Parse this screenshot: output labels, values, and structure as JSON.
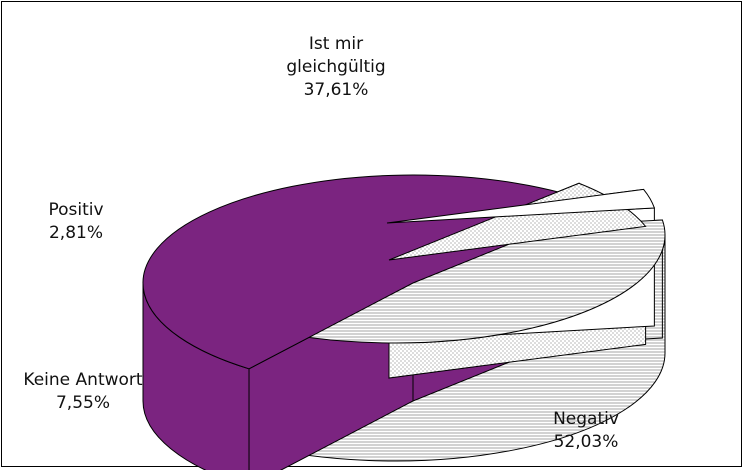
{
  "chart_data": {
    "type": "pie",
    "style": "3d-exploded",
    "title": "",
    "slices": [
      {
        "label_lines": [
          "Ist mir",
          "gleichgültig"
        ],
        "value_text": "37,61%",
        "value": 37.61,
        "fill": "hatched-horizontal-light-gray"
      },
      {
        "label_lines": [
          "Negativ"
        ],
        "value_text": "52,03%",
        "value": 52.03,
        "fill": "#7B2480"
      },
      {
        "label_lines": [
          "Keine Antwort"
        ],
        "value_text": "7,55%",
        "value": 7.55,
        "fill": "dotted-white"
      },
      {
        "label_lines": [
          "Positiv"
        ],
        "value_text": "2,81%",
        "value": 2.81,
        "fill": "#ffffff"
      }
    ],
    "legend": "none",
    "grid": false
  },
  "colors": {
    "negativ": "#7B2480",
    "negativ_side": "#7B2480",
    "hatch_line": "#9a9a9a",
    "outline": "#000000"
  }
}
